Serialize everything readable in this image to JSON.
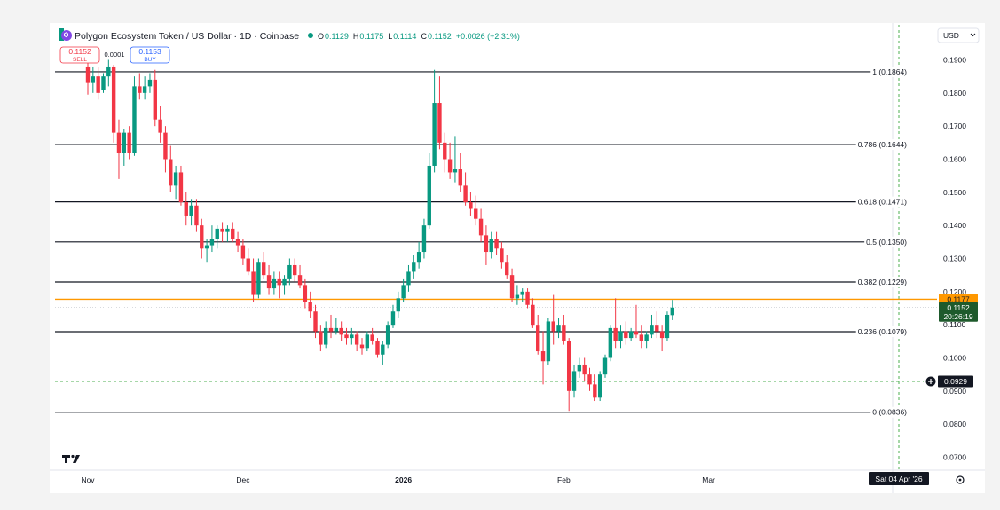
{
  "header": {
    "symbol_title": "Polygon Ecosystem Token / US Dollar · 1D · Coinbase",
    "ohlc": [
      {
        "key": "O",
        "value": "0.1129"
      },
      {
        "key": "H",
        "value": "0.1175"
      },
      {
        "key": "L",
        "value": "0.1114"
      },
      {
        "key": "C",
        "value": "0.1152"
      }
    ],
    "change": "+0.0026 (+2.31%)",
    "currency_select": "USD",
    "sell_price": "0.1152",
    "sell_label": "SELL",
    "spread": "0.0001",
    "buy_price": "0.1153",
    "buy_label": "BUY"
  },
  "colors": {
    "up": "#089981",
    "down": "#f23645",
    "horizontal_line": "#ff9800",
    "dashed_line": "#4caf50",
    "price_badge": "#1e5a2c"
  },
  "price_badges": {
    "horizontal_line_price": "0.1177",
    "last_price": "0.1152",
    "countdown": "20:26:19",
    "crosshair_price": "0.0929"
  },
  "crosshair_date": "Sat 04 Apr '26",
  "chart_data": {
    "type": "candlestick",
    "title": "Polygon Ecosystem Token / US Dollar · 1D · Coinbase",
    "ylim": [
      0.066,
      0.195
    ],
    "y_ticks": [
      "0.1900",
      "0.1800",
      "0.1700",
      "0.1600",
      "0.1500",
      "0.1400",
      "0.1300",
      "0.1200",
      "0.1100",
      "0.1000",
      "0.0900",
      "0.0800",
      "0.0700"
    ],
    "x_ticks": [
      {
        "label": "Nov",
        "day": 0
      },
      {
        "label": "Dec",
        "day": 30
      },
      {
        "label": "2026",
        "day": 61
      },
      {
        "label": "Feb",
        "day": 92
      },
      {
        "label": "Mar",
        "day": 120
      }
    ],
    "fib_levels": [
      {
        "label": "1 (0.1864)",
        "value": 0.1864
      },
      {
        "label": "0.786 (0.1644)",
        "value": 0.1644
      },
      {
        "label": "0.618 (0.1471)",
        "value": 0.1471
      },
      {
        "label": "0.5 (0.1350)",
        "value": 0.135
      },
      {
        "label": "0.382 (0.1229)",
        "value": 0.1229
      },
      {
        "label": "0.236 (0.1079)",
        "value": 0.1079
      },
      {
        "label": "0 (0.0836)",
        "value": 0.0836
      }
    ],
    "horizontal_line": 0.1177,
    "last_price": 0.1152,
    "crosshair_price": 0.0929,
    "candles": [
      [
        0.188,
        0.1895,
        0.1795,
        0.183
      ],
      [
        0.183,
        0.188,
        0.18,
        0.185
      ],
      [
        0.185,
        0.188,
        0.178,
        0.18
      ],
      [
        0.181,
        0.186,
        0.18,
        0.185
      ],
      [
        0.185,
        0.19,
        0.182,
        0.188
      ],
      [
        0.188,
        0.1885,
        0.165,
        0.168
      ],
      [
        0.168,
        0.172,
        0.154,
        0.162
      ],
      [
        0.162,
        0.169,
        0.158,
        0.168
      ],
      [
        0.168,
        0.17,
        0.16,
        0.162
      ],
      [
        0.162,
        0.185,
        0.161,
        0.182
      ],
      [
        0.182,
        0.186,
        0.178,
        0.18
      ],
      [
        0.18,
        0.185,
        0.178,
        0.182
      ],
      [
        0.182,
        0.186,
        0.18,
        0.184
      ],
      [
        0.184,
        0.187,
        0.17,
        0.172
      ],
      [
        0.172,
        0.176,
        0.165,
        0.168
      ],
      [
        0.168,
        0.17,
        0.156,
        0.16
      ],
      [
        0.16,
        0.164,
        0.15,
        0.152
      ],
      [
        0.152,
        0.158,
        0.148,
        0.156
      ],
      [
        0.156,
        0.158,
        0.146,
        0.147
      ],
      [
        0.147,
        0.15,
        0.14,
        0.143
      ],
      [
        0.143,
        0.148,
        0.14,
        0.146
      ],
      [
        0.146,
        0.148,
        0.138,
        0.14
      ],
      [
        0.14,
        0.142,
        0.13,
        0.133
      ],
      [
        0.133,
        0.136,
        0.129,
        0.134
      ],
      [
        0.134,
        0.14,
        0.132,
        0.136
      ],
      [
        0.136,
        0.14,
        0.133,
        0.139
      ],
      [
        0.139,
        0.141,
        0.135,
        0.138
      ],
      [
        0.138,
        0.14,
        0.135,
        0.139
      ],
      [
        0.139,
        0.141,
        0.135,
        0.136
      ],
      [
        0.136,
        0.138,
        0.132,
        0.134
      ],
      [
        0.134,
        0.136,
        0.128,
        0.13
      ],
      [
        0.13,
        0.133,
        0.125,
        0.126
      ],
      [
        0.126,
        0.13,
        0.117,
        0.119
      ],
      [
        0.119,
        0.13,
        0.118,
        0.129
      ],
      [
        0.129,
        0.132,
        0.124,
        0.125
      ],
      [
        0.125,
        0.128,
        0.119,
        0.121
      ],
      [
        0.121,
        0.126,
        0.119,
        0.124
      ],
      [
        0.124,
        0.126,
        0.118,
        0.122
      ],
      [
        0.122,
        0.125,
        0.119,
        0.124
      ],
      [
        0.124,
        0.13,
        0.122,
        0.128
      ],
      [
        0.128,
        0.13,
        0.123,
        0.125
      ],
      [
        0.125,
        0.128,
        0.121,
        0.122
      ],
      [
        0.122,
        0.124,
        0.115,
        0.117
      ],
      [
        0.117,
        0.12,
        0.112,
        0.114
      ],
      [
        0.114,
        0.116,
        0.106,
        0.108
      ],
      [
        0.108,
        0.11,
        0.102,
        0.104
      ],
      [
        0.104,
        0.111,
        0.103,
        0.109
      ],
      [
        0.109,
        0.113,
        0.106,
        0.108
      ],
      [
        0.108,
        0.112,
        0.107,
        0.109
      ],
      [
        0.109,
        0.111,
        0.105,
        0.107
      ],
      [
        0.107,
        0.109,
        0.104,
        0.106
      ],
      [
        0.106,
        0.109,
        0.104,
        0.107
      ],
      [
        0.107,
        0.108,
        0.102,
        0.104
      ],
      [
        0.104,
        0.106,
        0.101,
        0.103
      ],
      [
        0.103,
        0.108,
        0.102,
        0.107
      ],
      [
        0.107,
        0.109,
        0.104,
        0.105
      ],
      [
        0.105,
        0.106,
        0.1,
        0.101
      ],
      [
        0.101,
        0.105,
        0.098,
        0.104
      ],
      [
        0.104,
        0.111,
        0.103,
        0.11
      ],
      [
        0.11,
        0.116,
        0.109,
        0.114
      ],
      [
        0.114,
        0.12,
        0.112,
        0.118
      ],
      [
        0.118,
        0.124,
        0.117,
        0.122
      ],
      [
        0.122,
        0.128,
        0.12,
        0.126
      ],
      [
        0.126,
        0.131,
        0.124,
        0.129
      ],
      [
        0.129,
        0.135,
        0.127,
        0.132
      ],
      [
        0.132,
        0.142,
        0.13,
        0.14
      ],
      [
        0.14,
        0.162,
        0.139,
        0.158
      ],
      [
        0.158,
        0.187,
        0.156,
        0.177
      ],
      [
        0.177,
        0.185,
        0.163,
        0.165
      ],
      [
        0.165,
        0.168,
        0.156,
        0.16
      ],
      [
        0.16,
        0.165,
        0.154,
        0.156
      ],
      [
        0.156,
        0.167,
        0.153,
        0.157
      ],
      [
        0.157,
        0.162,
        0.15,
        0.152
      ],
      [
        0.152,
        0.156,
        0.146,
        0.147
      ],
      [
        0.147,
        0.15,
        0.143,
        0.145
      ],
      [
        0.145,
        0.149,
        0.14,
        0.142
      ],
      [
        0.142,
        0.145,
        0.135,
        0.137
      ],
      [
        0.137,
        0.14,
        0.128,
        0.132
      ],
      [
        0.132,
        0.138,
        0.13,
        0.136
      ],
      [
        0.136,
        0.138,
        0.131,
        0.133
      ],
      [
        0.133,
        0.135,
        0.127,
        0.129
      ],
      [
        0.129,
        0.131,
        0.124,
        0.125
      ],
      [
        0.125,
        0.127,
        0.117,
        0.118
      ],
      [
        0.118,
        0.122,
        0.116,
        0.119
      ],
      [
        0.119,
        0.121,
        0.117,
        0.12
      ],
      [
        0.12,
        0.121,
        0.115,
        0.116
      ],
      [
        0.116,
        0.118,
        0.109,
        0.11
      ],
      [
        0.11,
        0.113,
        0.101,
        0.102
      ],
      [
        0.102,
        0.108,
        0.092,
        0.099
      ],
      [
        0.099,
        0.112,
        0.098,
        0.111
      ],
      [
        0.111,
        0.119,
        0.104,
        0.108
      ],
      [
        0.108,
        0.112,
        0.106,
        0.11
      ],
      [
        0.11,
        0.113,
        0.104,
        0.105
      ],
      [
        0.105,
        0.106,
        0.084,
        0.09
      ],
      [
        0.09,
        0.098,
        0.088,
        0.096
      ],
      [
        0.096,
        0.1,
        0.094,
        0.098
      ],
      [
        0.098,
        0.1,
        0.093,
        0.095
      ],
      [
        0.095,
        0.097,
        0.09,
        0.092
      ],
      [
        0.092,
        0.095,
        0.087,
        0.088
      ],
      [
        0.088,
        0.096,
        0.087,
        0.095
      ],
      [
        0.095,
        0.101,
        0.094,
        0.1
      ],
      [
        0.1,
        0.11,
        0.099,
        0.109
      ],
      [
        0.109,
        0.118,
        0.103,
        0.105
      ],
      [
        0.105,
        0.11,
        0.103,
        0.108
      ],
      [
        0.108,
        0.111,
        0.104,
        0.106
      ],
      [
        0.106,
        0.109,
        0.105,
        0.108
      ],
      [
        0.108,
        0.116,
        0.106,
        0.107
      ],
      [
        0.107,
        0.11,
        0.103,
        0.105
      ],
      [
        0.105,
        0.108,
        0.103,
        0.107
      ],
      [
        0.107,
        0.113,
        0.106,
        0.11
      ],
      [
        0.11,
        0.114,
        0.106,
        0.108
      ],
      [
        0.108,
        0.11,
        0.102,
        0.106
      ],
      [
        0.106,
        0.114,
        0.105,
        0.113
      ],
      [
        0.1129,
        0.1175,
        0.1114,
        0.1152
      ]
    ]
  }
}
